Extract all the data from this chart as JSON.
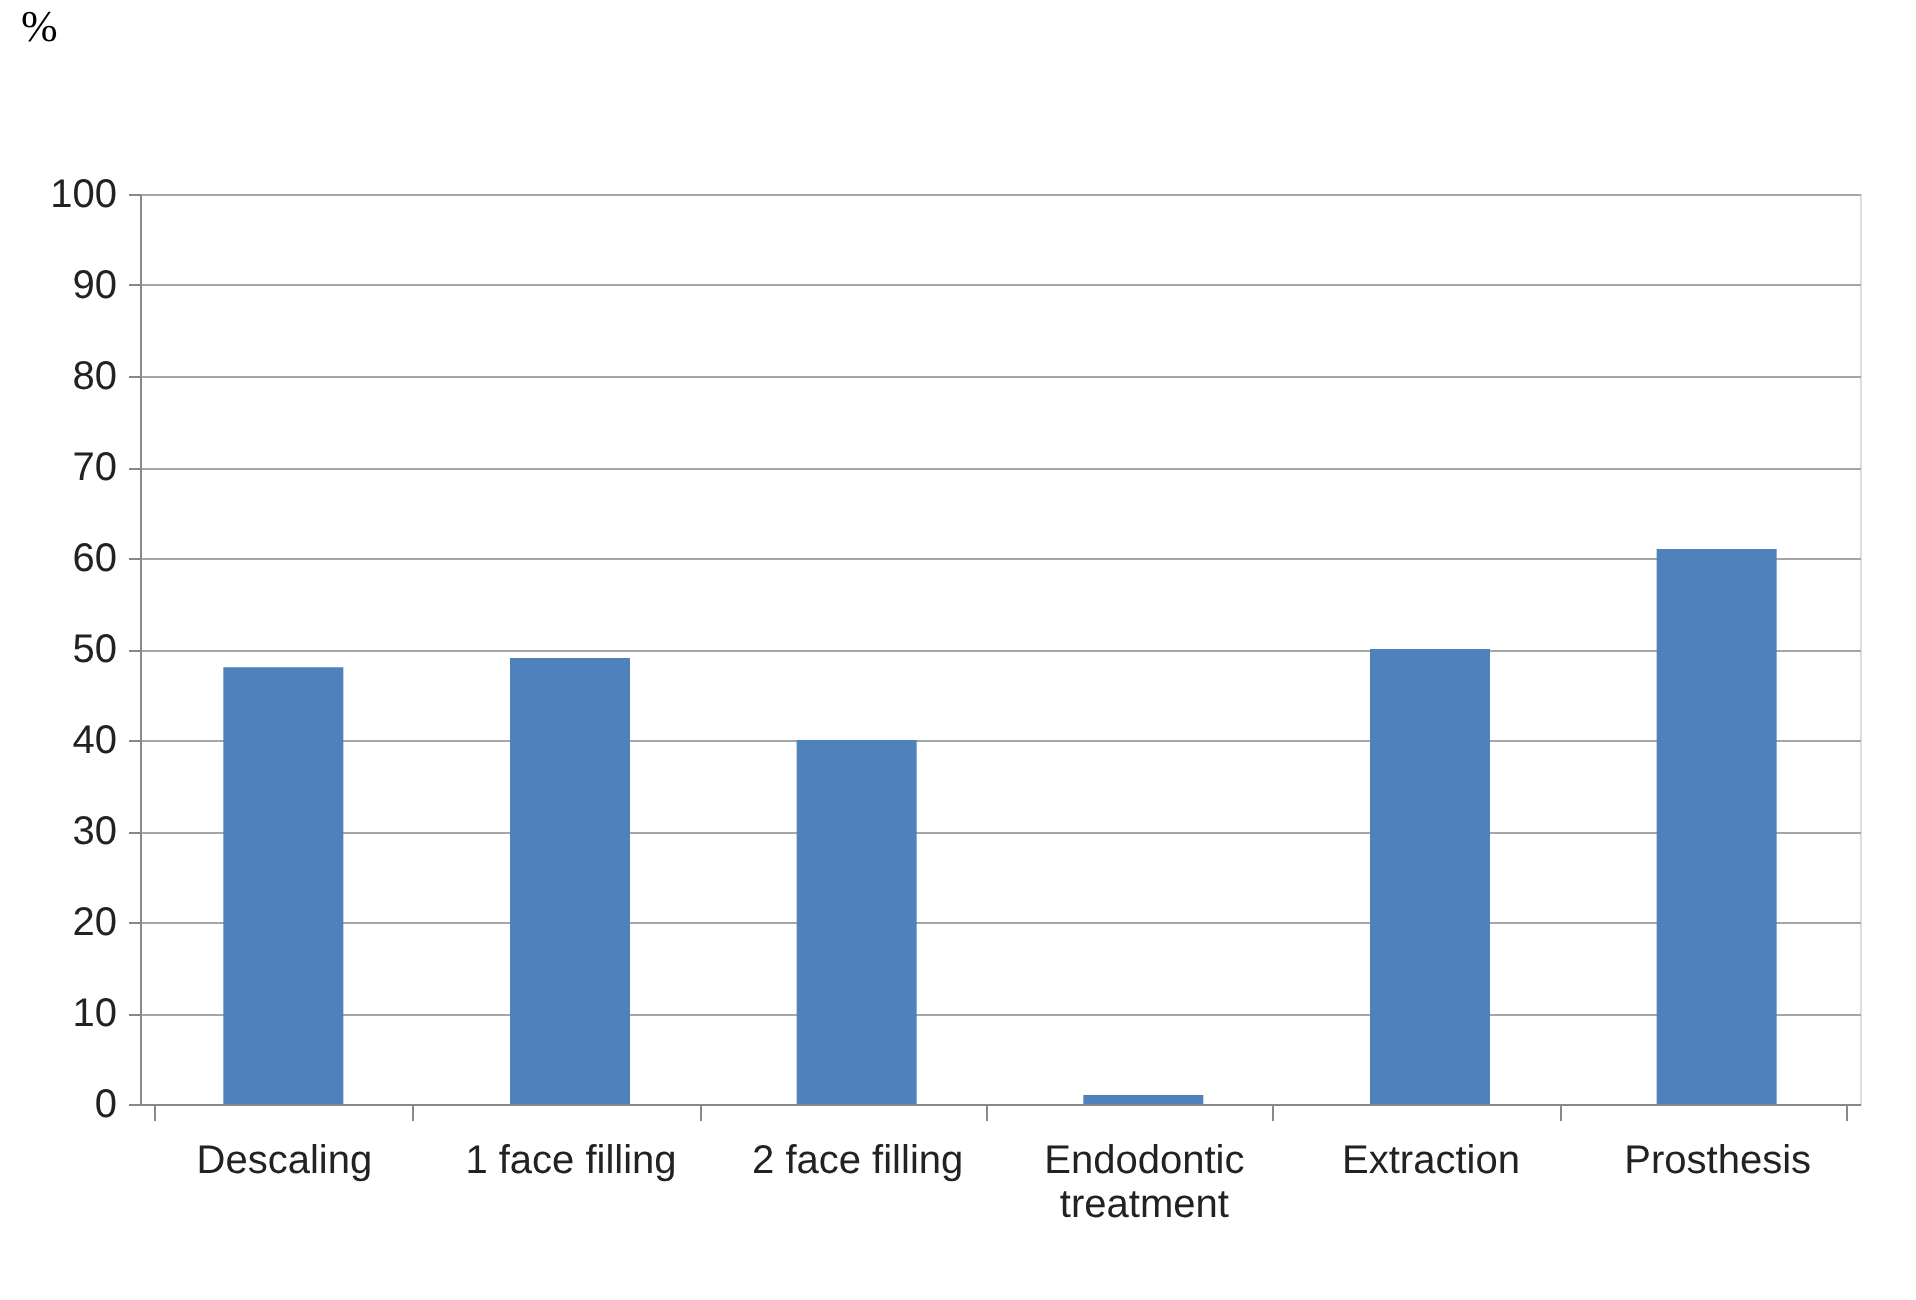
{
  "chart_data": {
    "type": "bar",
    "ylabel": "%",
    "categories": [
      "Descaling",
      "1 face filling",
      "2 face filling",
      "Endodontic treatment",
      "Extraction",
      "Prosthesis"
    ],
    "values": [
      48,
      49,
      40,
      1,
      50,
      61
    ],
    "color": "#4f81bd",
    "ylim": [
      0,
      100
    ],
    "yticks": [
      0,
      10,
      20,
      30,
      40,
      50,
      60,
      70,
      80,
      90,
      100
    ],
    "grid": "y"
  }
}
